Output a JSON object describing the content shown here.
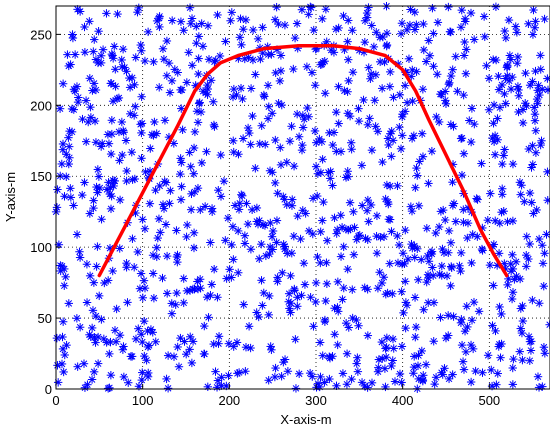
{
  "chart_data": {
    "type": "scatter",
    "title": "",
    "xlabel": "X-axis-m",
    "ylabel": "Y-axis-m",
    "xlim": [
      0,
      570
    ],
    "ylim": [
      0,
      270
    ],
    "xticks": [
      0,
      100,
      200,
      300,
      400,
      500
    ],
    "yticks": [
      0,
      50,
      100,
      150,
      200,
      250
    ],
    "grid": "dotted",
    "legend": "none",
    "colors": {
      "points": "#0000ff",
      "path": "#ff0000"
    },
    "scatter_note_count": 1200,
    "path": {
      "x": [
        50,
        80,
        110,
        140,
        160,
        175,
        190,
        210,
        240,
        280,
        320,
        350,
        380,
        400,
        415,
        430,
        450,
        470,
        490,
        505,
        520
      ],
      "y": [
        80,
        115,
        150,
        185,
        210,
        222,
        230,
        235,
        240,
        242,
        242,
        240,
        235,
        225,
        210,
        190,
        165,
        140,
        112,
        95,
        80
      ]
    }
  }
}
